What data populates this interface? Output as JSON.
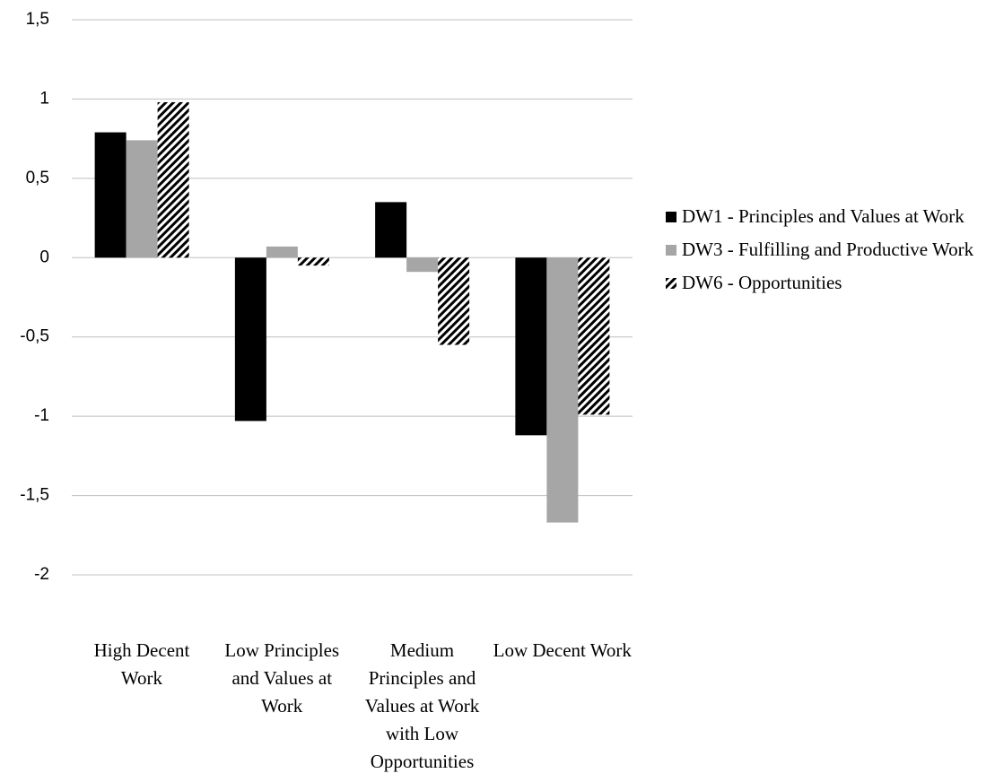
{
  "chart_data": {
    "type": "bar",
    "categories": [
      "High Decent Work",
      "Low Principles and Values at Work",
      "Medium Principles and Values at Work with Low Opportunities",
      "Low Decent Work"
    ],
    "series": [
      {
        "name": "DW1 - Principles and Values at Work",
        "color": "#000000",
        "values": [
          0.79,
          -1.03,
          0.35,
          -1.12
        ]
      },
      {
        "name": "DW3 - Fulfilling and Productive Work",
        "color": "#a6a6a6",
        "values": [
          0.74,
          0.07,
          -0.09,
          -1.67
        ]
      },
      {
        "name": "DW6 - Opportunities",
        "color": "#000000",
        "hatch": true,
        "values": [
          0.98,
          -0.05,
          -0.55,
          -0.99
        ]
      }
    ],
    "ylim": [
      -2,
      1.5
    ],
    "yticks": [
      -2,
      {
        "value": -1.5,
        "label": "-1,5"
      },
      -1,
      {
        "value": -0.5,
        "label": "-0,5"
      },
      0,
      {
        "value": 0.5,
        "label": "0,5"
      },
      1,
      {
        "value": 1.5,
        "label": "1,5"
      }
    ],
    "grid": true,
    "legend": "right"
  }
}
